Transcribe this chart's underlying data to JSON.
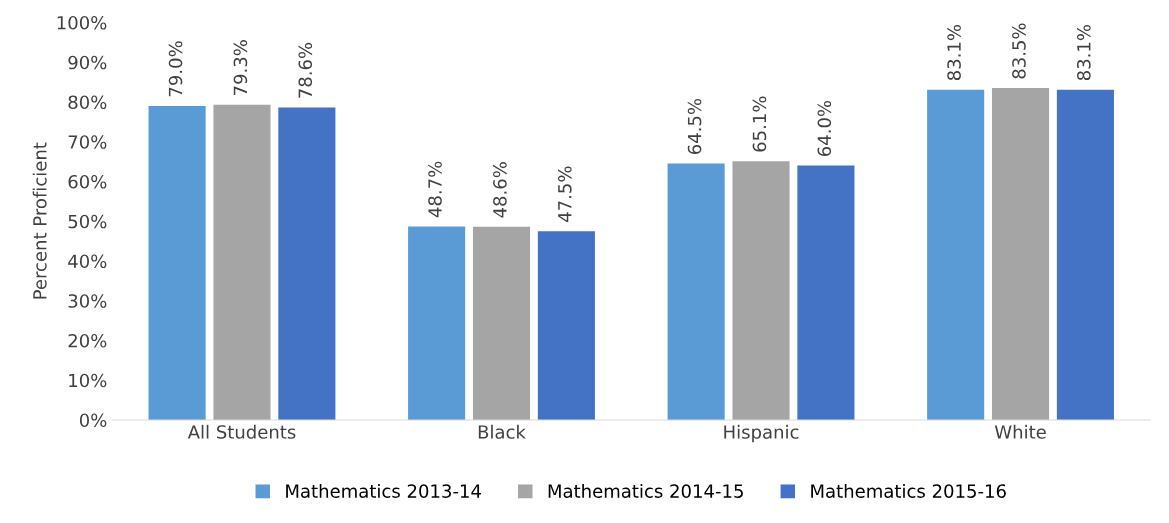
{
  "chart_data": {
    "type": "bar",
    "ylabel": "Percent Proficient",
    "categories": [
      "All Students",
      "Black",
      "Hispanic",
      "White"
    ],
    "series": [
      {
        "name": "Mathematics 2013-14",
        "color": "#5b9bd5",
        "values": [
          79.0,
          48.7,
          64.5,
          83.1
        ],
        "value_labels": [
          "79.0%",
          "48.7%",
          "64.5%",
          "83.1%"
        ]
      },
      {
        "name": "Mathematics 2014-15",
        "color": "#a5a5a5",
        "values": [
          79.3,
          48.6,
          65.1,
          83.5
        ],
        "value_labels": [
          "79.3%",
          "48.6%",
          "65.1%",
          "83.5%"
        ]
      },
      {
        "name": "Mathematics 2015-16",
        "color": "#4472c4",
        "values": [
          78.6,
          47.5,
          64.0,
          83.1
        ],
        "value_labels": [
          "78.6%",
          "47.5%",
          "64.0%",
          "83.1%"
        ]
      }
    ],
    "ylim": [
      0,
      100
    ],
    "yticks": [
      {
        "value": 0,
        "label": "0%"
      },
      {
        "value": 10,
        "label": "10%"
      },
      {
        "value": 20,
        "label": "20%"
      },
      {
        "value": 30,
        "label": "30%"
      },
      {
        "value": 40,
        "label": "40%"
      },
      {
        "value": 50,
        "label": "50%"
      },
      {
        "value": 60,
        "label": "60%"
      },
      {
        "value": 70,
        "label": "70%"
      },
      {
        "value": 80,
        "label": "80%"
      },
      {
        "value": 90,
        "label": "90%"
      },
      {
        "value": 100,
        "label": "100%"
      }
    ],
    "grid": false,
    "legend": "bottom"
  }
}
